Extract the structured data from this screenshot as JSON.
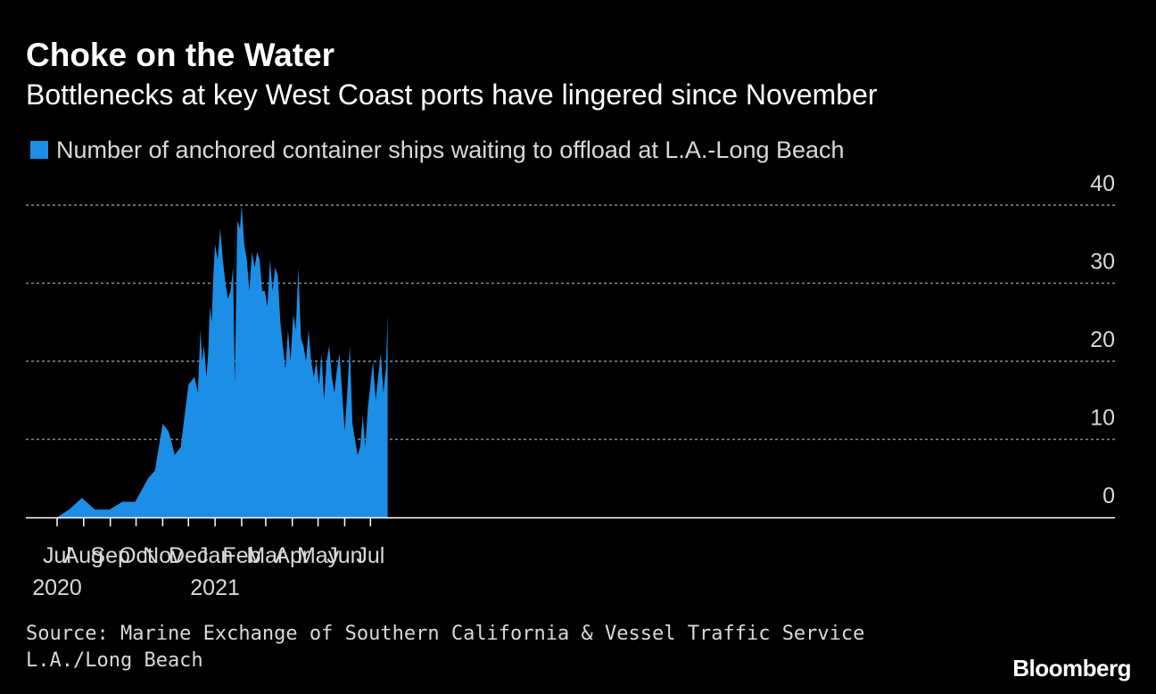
{
  "title": "Choke on the Water",
  "subtitle": "Bottlenecks at key West Coast ports have lingered since November",
  "legend": {
    "label": "Number of anchored container ships waiting to offload at L.A.-Long Beach"
  },
  "colors": {
    "series": "#1c8ee6",
    "background": "#000000",
    "grid": "#8a8a8a",
    "text": "#ffffff",
    "muted": "#d9d9d9"
  },
  "source": "Source: Marine Exchange of Southern California & Vessel Traffic Service L.A./Long Beach",
  "brand": "Bloomberg",
  "chart_data": {
    "type": "area",
    "title": "Choke on the Water",
    "subtitle": "Bottlenecks at key West Coast ports have lingered since November",
    "xlabel": "",
    "ylabel": "",
    "ylim": [
      0,
      40
    ],
    "yticks": [
      0,
      10,
      20,
      30,
      40
    ],
    "y_axis_side": "right",
    "grid": "horizontal dashed",
    "legend_position": "top-left",
    "xlim": [
      "2020-07-01",
      "2021-08-31"
    ],
    "x_ticks": [
      {
        "date": "2020-07-01",
        "label": "Jul",
        "year": "2020"
      },
      {
        "date": "2020-08-01",
        "label": "Aug",
        "year": ""
      },
      {
        "date": "2020-09-01",
        "label": "Sep",
        "year": ""
      },
      {
        "date": "2020-10-01",
        "label": "Oct",
        "year": ""
      },
      {
        "date": "2020-11-01",
        "label": "Nov",
        "year": ""
      },
      {
        "date": "2020-12-01",
        "label": "Dec",
        "year": ""
      },
      {
        "date": "2021-01-01",
        "label": "Jan",
        "year": "2021"
      },
      {
        "date": "2021-02-01",
        "label": "Feb",
        "year": ""
      },
      {
        "date": "2021-03-01",
        "label": "Mar",
        "year": ""
      },
      {
        "date": "2021-04-01",
        "label": "Apr",
        "year": ""
      },
      {
        "date": "2021-05-01",
        "label": "May",
        "year": ""
      },
      {
        "date": "2021-06-01",
        "label": "Jun",
        "year": ""
      },
      {
        "date": "2021-07-01",
        "label": "Jul",
        "year": ""
      }
    ],
    "series": [
      {
        "name": "Number of anchored container ships waiting to offload at L.A.-Long Beach",
        "points": [
          [
            "2020-07-01",
            0
          ],
          [
            "2020-07-15",
            1
          ],
          [
            "2020-07-30",
            2.5
          ],
          [
            "2020-08-14",
            1
          ],
          [
            "2020-08-31",
            1
          ],
          [
            "2020-09-15",
            2
          ],
          [
            "2020-09-30",
            2
          ],
          [
            "2020-10-15",
            5
          ],
          [
            "2020-10-23",
            6
          ],
          [
            "2020-11-01",
            12
          ],
          [
            "2020-11-08",
            11
          ],
          [
            "2020-11-15",
            8
          ],
          [
            "2020-11-22",
            9
          ],
          [
            "2020-12-01",
            17
          ],
          [
            "2020-12-08",
            18
          ],
          [
            "2020-12-12",
            16
          ],
          [
            "2020-12-15",
            24
          ],
          [
            "2020-12-17",
            20
          ],
          [
            "2020-12-19",
            22
          ],
          [
            "2020-12-22",
            18
          ],
          [
            "2020-12-24",
            21
          ],
          [
            "2020-12-26",
            27
          ],
          [
            "2020-12-28",
            25
          ],
          [
            "2020-12-30",
            31
          ],
          [
            "2021-01-01",
            35
          ],
          [
            "2021-01-04",
            33
          ],
          [
            "2021-01-07",
            37
          ],
          [
            "2021-01-10",
            33
          ],
          [
            "2021-01-13",
            30
          ],
          [
            "2021-01-16",
            28
          ],
          [
            "2021-01-19",
            29
          ],
          [
            "2021-01-22",
            32
          ],
          [
            "2021-01-24",
            17
          ],
          [
            "2021-01-27",
            38
          ],
          [
            "2021-01-30",
            37
          ],
          [
            "2021-02-01",
            40
          ],
          [
            "2021-02-04",
            35
          ],
          [
            "2021-02-07",
            33
          ],
          [
            "2021-02-10",
            29
          ],
          [
            "2021-02-13",
            34
          ],
          [
            "2021-02-16",
            32
          ],
          [
            "2021-02-19",
            34
          ],
          [
            "2021-02-22",
            33
          ],
          [
            "2021-02-25",
            29
          ],
          [
            "2021-02-28",
            29
          ],
          [
            "2021-03-03",
            27
          ],
          [
            "2021-03-06",
            33
          ],
          [
            "2021-03-09",
            29
          ],
          [
            "2021-03-12",
            32
          ],
          [
            "2021-03-15",
            31
          ],
          [
            "2021-03-18",
            25
          ],
          [
            "2021-03-21",
            22
          ],
          [
            "2021-03-24",
            19
          ],
          [
            "2021-03-27",
            24
          ],
          [
            "2021-03-30",
            20
          ],
          [
            "2021-04-02",
            26
          ],
          [
            "2021-04-05",
            24
          ],
          [
            "2021-04-08",
            32
          ],
          [
            "2021-04-11",
            23
          ],
          [
            "2021-04-14",
            22
          ],
          [
            "2021-04-17",
            20
          ],
          [
            "2021-04-20",
            24
          ],
          [
            "2021-04-23",
            20
          ],
          [
            "2021-04-26",
            18
          ],
          [
            "2021-04-29",
            20
          ],
          [
            "2021-05-02",
            17
          ],
          [
            "2021-05-05",
            21
          ],
          [
            "2021-05-08",
            15
          ],
          [
            "2021-05-11",
            20
          ],
          [
            "2021-05-14",
            22
          ],
          [
            "2021-05-17",
            18
          ],
          [
            "2021-05-20",
            16
          ],
          [
            "2021-05-23",
            19
          ],
          [
            "2021-05-26",
            21
          ],
          [
            "2021-05-29",
            16
          ],
          [
            "2021-06-01",
            11
          ],
          [
            "2021-06-04",
            16
          ],
          [
            "2021-06-07",
            22
          ],
          [
            "2021-06-10",
            12
          ],
          [
            "2021-06-13",
            10
          ],
          [
            "2021-06-16",
            8
          ],
          [
            "2021-06-19",
            9
          ],
          [
            "2021-06-22",
            13
          ],
          [
            "2021-06-25",
            9
          ],
          [
            "2021-06-28",
            14
          ],
          [
            "2021-07-01",
            17
          ],
          [
            "2021-07-04",
            20
          ],
          [
            "2021-07-07",
            15
          ],
          [
            "2021-07-10",
            18
          ],
          [
            "2021-07-13",
            21
          ],
          [
            "2021-07-16",
            16
          ],
          [
            "2021-07-19",
            19
          ],
          [
            "2021-07-21",
            26
          ]
        ]
      }
    ]
  }
}
